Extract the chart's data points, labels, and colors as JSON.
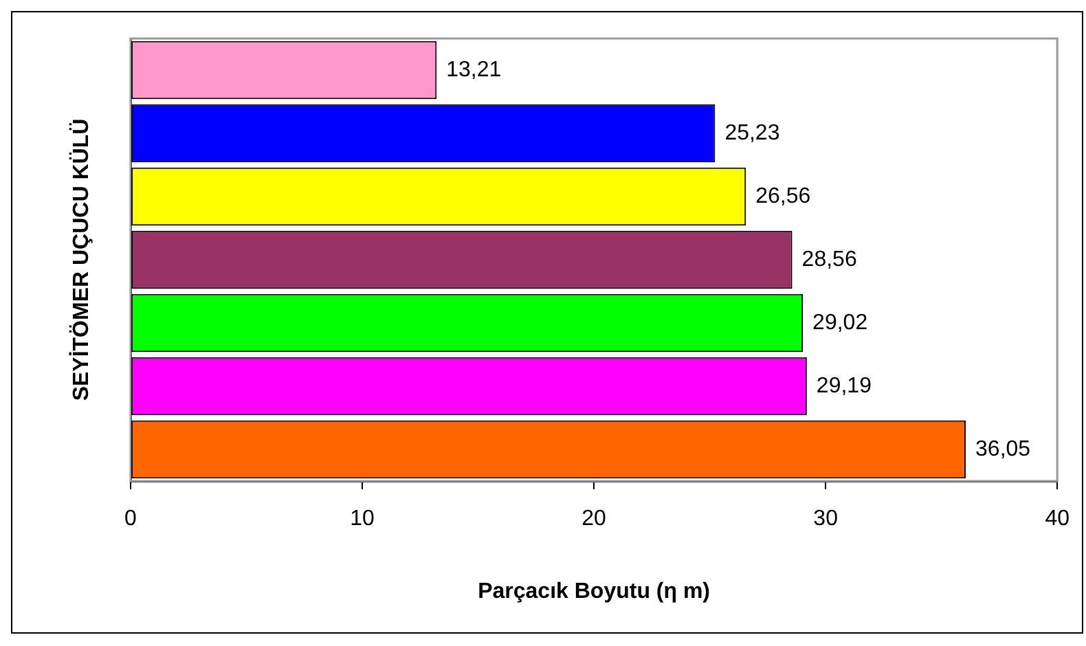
{
  "chart_data": {
    "type": "bar",
    "orientation": "horizontal",
    "ylabel": "SEYİTÖMER UÇUCU KÜLÜ",
    "xlabel": "Parçacık Boyutu (η m)",
    "categories": [
      null,
      null,
      null,
      null,
      null,
      null,
      null
    ],
    "values": [
      13.21,
      25.23,
      26.56,
      28.56,
      29.02,
      29.19,
      36.05
    ],
    "colors": [
      "#ff99cc",
      "#0000ff",
      "#ffff00",
      "#993366",
      "#00ff00",
      "#ff00ff",
      "#ff6600"
    ],
    "value_labels": [
      "13,21",
      "25,23",
      "26,56",
      "28,56",
      "29,02",
      "29,19",
      "36,05"
    ],
    "xlim": [
      0,
      40
    ],
    "xticks": [
      0,
      10,
      20,
      30,
      40
    ],
    "grid": false,
    "legend": false
  }
}
